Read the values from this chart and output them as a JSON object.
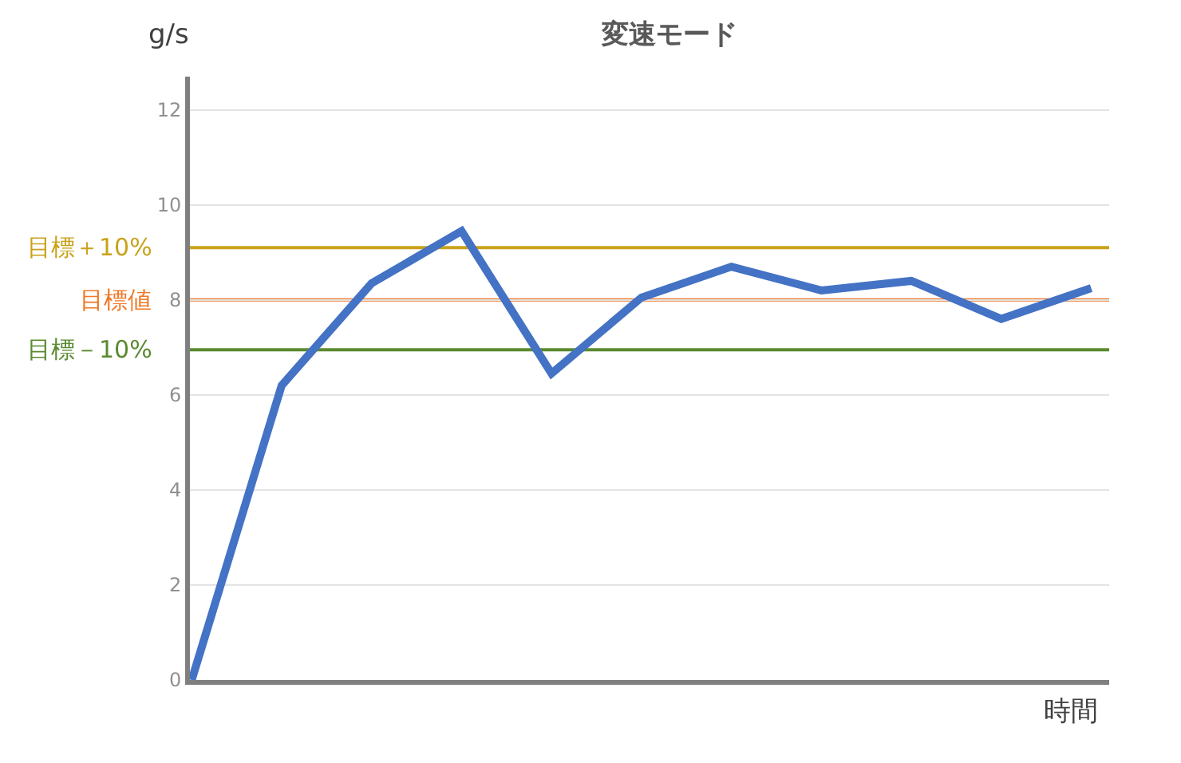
{
  "chart_data": {
    "type": "line",
    "title": "変速モード",
    "xlabel": "時間",
    "ylabel": "g/s",
    "categories": [
      null,
      null,
      null,
      null,
      null,
      null,
      null,
      null,
      null,
      null,
      null
    ],
    "series": [
      {
        "color": "#4472c4",
        "values": [
          0,
          6.2,
          8.35,
          9.45,
          6.45,
          8.05,
          8.7,
          8.2,
          8.4,
          7.6,
          8.25
        ]
      }
    ],
    "ylim": [
      0,
      12.7
    ],
    "yticks": [
      0,
      2,
      4,
      6,
      8,
      10,
      12
    ],
    "grid": "y",
    "tick_labels": "y",
    "marker": "none",
    "line_style": "solid",
    "ref_lines": [
      {
        "axis": "y",
        "value": 9.1,
        "label": "目標＋10%",
        "color": "#c9a21a"
      },
      {
        "axis": "y",
        "value": 8,
        "label": "目標値",
        "color": "#f07828"
      },
      {
        "axis": "y",
        "value": 6.95,
        "label": "目標－10%",
        "color": "#5a8a30"
      }
    ]
  }
}
